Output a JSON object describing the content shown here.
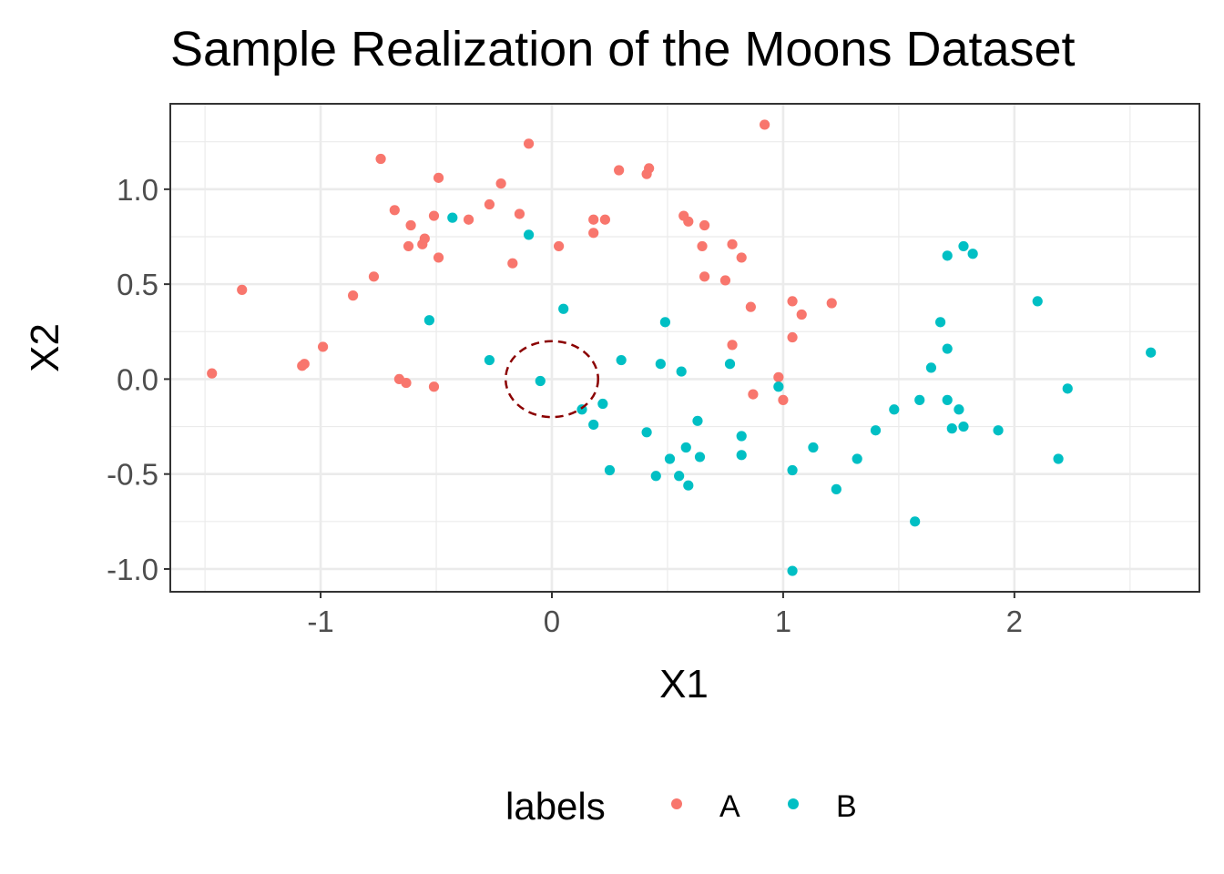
{
  "chart_data": {
    "type": "scatter",
    "title": "Sample Realization of the Moons Dataset",
    "xlabel": "X1",
    "ylabel": "X2",
    "xlim": [
      -1.65,
      2.8
    ],
    "ylim": [
      -1.12,
      1.45
    ],
    "x_ticks": [
      -1,
      0,
      1,
      2
    ],
    "x_tick_labels": [
      "-1",
      "0",
      "1",
      "2"
    ],
    "y_ticks": [
      -1.0,
      -0.5,
      0.0,
      0.5,
      1.0
    ],
    "y_tick_labels": [
      "-1.0",
      "-0.5",
      "0.0",
      "0.5",
      "1.0"
    ],
    "grid": true,
    "legend": {
      "title": "labels",
      "position": "bottom"
    },
    "annotation": {
      "shape": "dashed-circle",
      "center": [
        0,
        0
      ],
      "radius": 0.2,
      "color": "#8b0000"
    },
    "series": [
      {
        "name": "A",
        "color": "#f8766d",
        "points": [
          [
            -1.47,
            0.03
          ],
          [
            -1.34,
            0.47
          ],
          [
            -1.08,
            0.07
          ],
          [
            -1.07,
            0.08
          ],
          [
            -0.99,
            0.17
          ],
          [
            -0.86,
            0.44
          ],
          [
            -0.77,
            0.54
          ],
          [
            -0.74,
            1.16
          ],
          [
            -0.68,
            0.89
          ],
          [
            -0.66,
            0.0
          ],
          [
            -0.63,
            -0.02
          ],
          [
            -0.62,
            0.7
          ],
          [
            -0.61,
            0.81
          ],
          [
            -0.56,
            0.71
          ],
          [
            -0.55,
            0.74
          ],
          [
            -0.51,
            0.86
          ],
          [
            -0.51,
            -0.04
          ],
          [
            -0.49,
            1.06
          ],
          [
            -0.49,
            0.64
          ],
          [
            -0.36,
            0.84
          ],
          [
            -0.27,
            0.92
          ],
          [
            -0.22,
            1.03
          ],
          [
            -0.17,
            0.61
          ],
          [
            -0.14,
            0.87
          ],
          [
            -0.1,
            1.24
          ],
          [
            0.03,
            0.7
          ],
          [
            0.18,
            0.84
          ],
          [
            0.18,
            0.77
          ],
          [
            0.23,
            0.84
          ],
          [
            0.29,
            1.1
          ],
          [
            0.41,
            1.08
          ],
          [
            0.42,
            1.11
          ],
          [
            0.57,
            0.86
          ],
          [
            0.59,
            0.83
          ],
          [
            0.65,
            0.7
          ],
          [
            0.66,
            0.81
          ],
          [
            0.66,
            0.54
          ],
          [
            0.75,
            0.52
          ],
          [
            0.78,
            0.71
          ],
          [
            0.78,
            0.18
          ],
          [
            0.82,
            0.64
          ],
          [
            0.86,
            0.38
          ],
          [
            0.87,
            -0.08
          ],
          [
            0.92,
            1.34
          ],
          [
            0.98,
            0.01
          ],
          [
            1.0,
            -0.11
          ],
          [
            1.04,
            0.41
          ],
          [
            1.04,
            0.22
          ],
          [
            1.08,
            0.34
          ],
          [
            1.21,
            0.4
          ]
        ]
      },
      {
        "name": "B",
        "color": "#00bfc4",
        "points": [
          [
            -0.53,
            0.31
          ],
          [
            -0.43,
            0.85
          ],
          [
            -0.27,
            0.1
          ],
          [
            -0.1,
            0.76
          ],
          [
            -0.05,
            -0.01
          ],
          [
            0.05,
            0.37
          ],
          [
            0.13,
            -0.16
          ],
          [
            0.18,
            -0.24
          ],
          [
            0.22,
            -0.13
          ],
          [
            0.25,
            -0.48
          ],
          [
            0.3,
            0.1
          ],
          [
            0.41,
            -0.28
          ],
          [
            0.45,
            -0.51
          ],
          [
            0.47,
            0.08
          ],
          [
            0.49,
            0.3
          ],
          [
            0.51,
            -0.42
          ],
          [
            0.55,
            -0.51
          ],
          [
            0.56,
            0.04
          ],
          [
            0.58,
            -0.36
          ],
          [
            0.59,
            -0.56
          ],
          [
            0.63,
            -0.22
          ],
          [
            0.64,
            -0.41
          ],
          [
            0.77,
            0.08
          ],
          [
            0.82,
            -0.3
          ],
          [
            0.82,
            -0.4
          ],
          [
            0.98,
            -0.04
          ],
          [
            1.04,
            -0.48
          ],
          [
            1.04,
            -1.01
          ],
          [
            1.13,
            -0.36
          ],
          [
            1.23,
            -0.58
          ],
          [
            1.32,
            -0.42
          ],
          [
            1.4,
            -0.27
          ],
          [
            1.48,
            -0.16
          ],
          [
            1.57,
            -0.75
          ],
          [
            1.59,
            -0.11
          ],
          [
            1.64,
            0.06
          ],
          [
            1.68,
            0.3
          ],
          [
            1.71,
            0.16
          ],
          [
            1.71,
            0.65
          ],
          [
            1.71,
            -0.11
          ],
          [
            1.73,
            -0.26
          ],
          [
            1.76,
            -0.16
          ],
          [
            1.78,
            0.7
          ],
          [
            1.78,
            -0.25
          ],
          [
            1.82,
            0.66
          ],
          [
            1.93,
            -0.27
          ],
          [
            2.1,
            0.41
          ],
          [
            2.19,
            -0.42
          ],
          [
            2.23,
            -0.05
          ],
          [
            2.59,
            0.14
          ]
        ]
      }
    ]
  }
}
